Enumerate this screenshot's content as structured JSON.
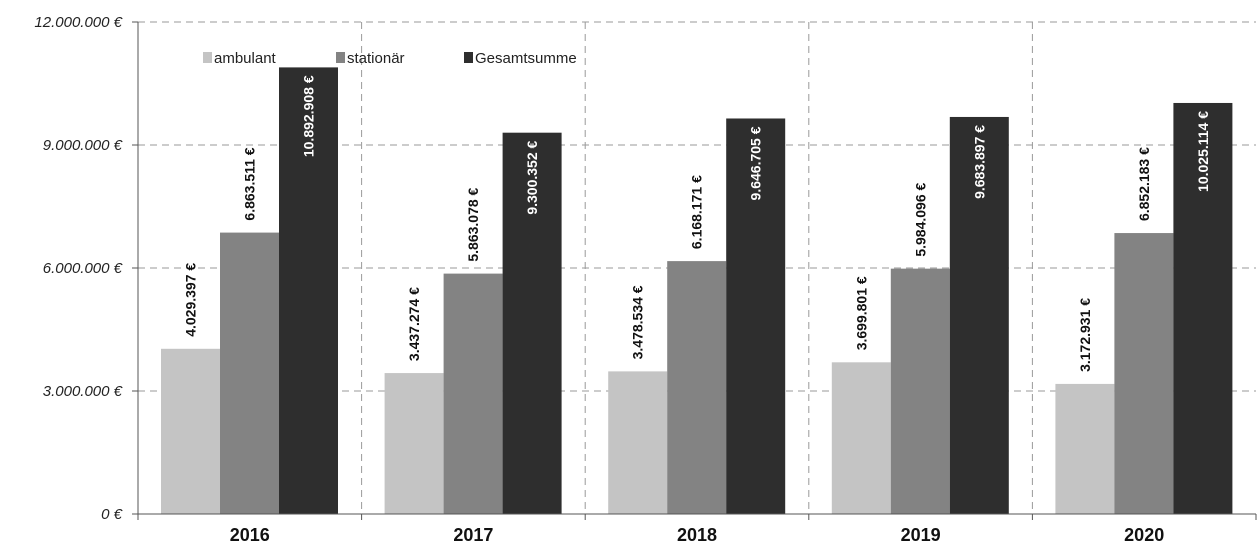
{
  "chart_data": {
    "type": "bar",
    "categories": [
      "2016",
      "2017",
      "2018",
      "2019",
      "2020"
    ],
    "series": [
      {
        "name": "ambulant",
        "color": "#c4c4c4",
        "values": [
          4029397,
          3437274,
          3478534,
          3699801,
          3172931
        ],
        "labels": [
          "4.029.397 €",
          "3.437.274 €",
          "3.478.534 €",
          "3.699.801 €",
          "3.172.931 €"
        ]
      },
      {
        "name": "stationär",
        "color": "#838383",
        "values": [
          6863511,
          5863078,
          6168171,
          5984096,
          6852183
        ],
        "labels": [
          "6.863.511 €",
          "5.863.078 €",
          "6.168.171 €",
          "5.984.096 €",
          "6.852.183 €"
        ]
      },
      {
        "name": "Gesamtsumme",
        "color": "#2e2e2e",
        "values": [
          10892908,
          9300352,
          9646705,
          9683897,
          10025114
        ],
        "labels": [
          "10.892.908 €",
          "9.300.352 €",
          "9.646.705 €",
          "9.683.897 €",
          "10.025.114 €"
        ]
      }
    ],
    "ylim": [
      0,
      12000000
    ],
    "yticks": [
      0,
      3000000,
      6000000,
      9000000,
      12000000
    ],
    "ytick_labels": [
      "0 €",
      "3.000.000 €",
      "6.000.000 €",
      "9.000.000 €",
      "12.000.000 €"
    ],
    "grid": true,
    "legend": "top-left"
  }
}
